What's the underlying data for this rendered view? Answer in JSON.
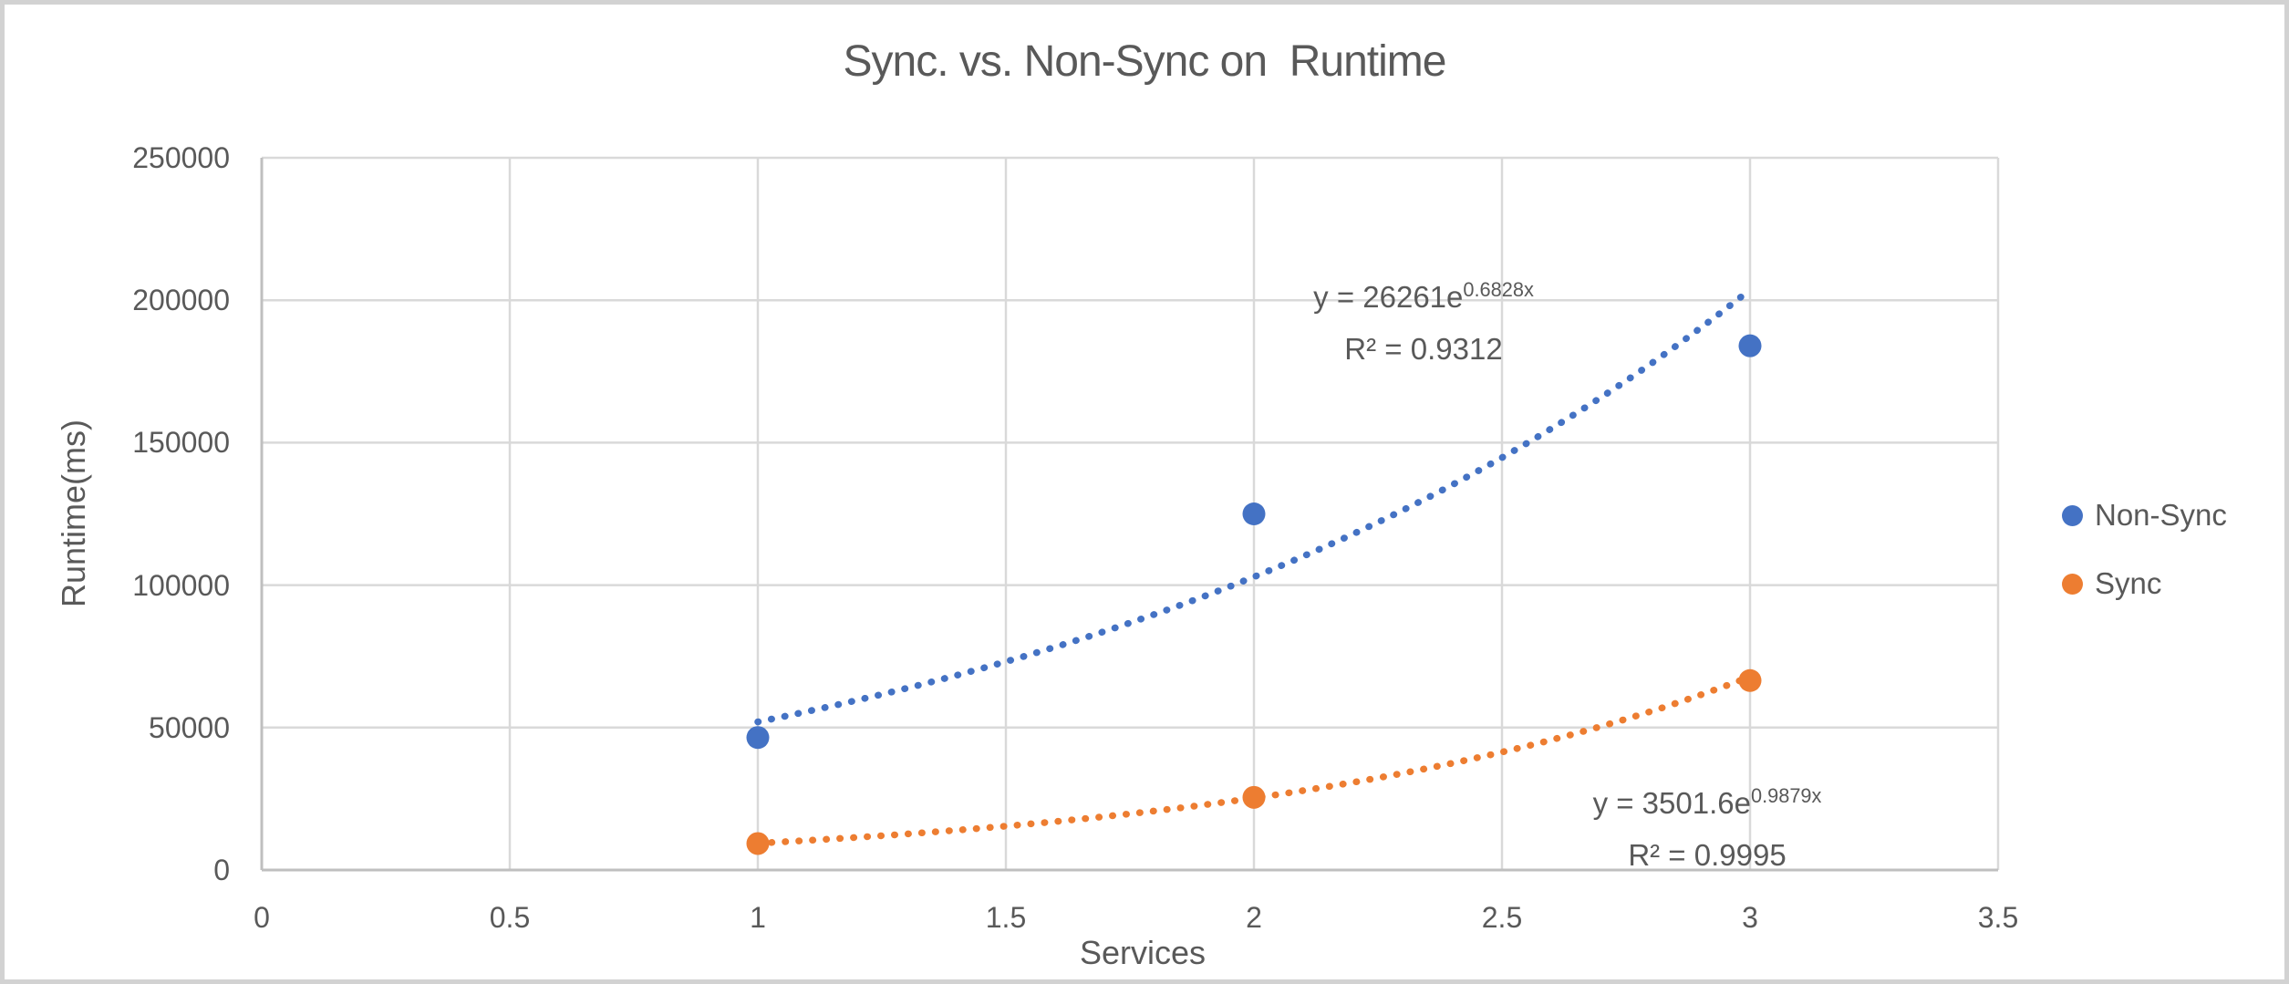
{
  "chart_data": {
    "type": "scatter",
    "title": "Sync. vs. Non-Sync on  Runtime",
    "xlabel": "Services",
    "ylabel": "Runtime(ms)",
    "xlim": [
      0,
      3.5
    ],
    "ylim": [
      0,
      250000
    ],
    "x_tick_values": [
      0,
      0.5,
      1,
      1.5,
      2,
      2.5,
      3,
      3.5
    ],
    "x_tick_labels": [
      "0",
      "0.5",
      "1",
      "1.5",
      "2",
      "2.5",
      "3",
      "3.5"
    ],
    "y_tick_values": [
      0,
      50000,
      100000,
      150000,
      200000,
      250000
    ],
    "y_tick_labels": [
      "0",
      "50000",
      "100000",
      "150000",
      "200000",
      "250000"
    ],
    "grid": true,
    "legend_position": "right",
    "series": [
      {
        "name": "Non-Sync",
        "color": "#4472C4",
        "points": [
          [
            1,
            46500
          ],
          [
            2,
            125000
          ],
          [
            3,
            184000
          ]
        ],
        "trendline": {
          "type": "exponential",
          "a": 26261,
          "b": 0.6828,
          "domain": [
            1,
            3
          ],
          "style": "dotted"
        },
        "label_prefix": "y = 26261e",
        "label_exponent": "0.6828x",
        "label_r2": "R² = 0.9312"
      },
      {
        "name": "Sync",
        "color": "#ED7D31",
        "points": [
          [
            1,
            9300
          ],
          [
            2,
            25500
          ],
          [
            3,
            66500
          ]
        ],
        "trendline": {
          "type": "exponential",
          "a": 3501.6,
          "b": 0.9879,
          "domain": [
            1,
            3
          ],
          "style": "dotted"
        },
        "label_prefix": "y = 3501.6e",
        "label_exponent": "0.9879x",
        "label_r2": "R² = 0.9995"
      }
    ]
  },
  "colors": {
    "text": "#595959",
    "gridline": "#D9D9D9",
    "axis_line": "#BFBFBF",
    "background": "#FFFFFF",
    "frame_border": "#D2D2D2",
    "non_sync": "#4472C4",
    "sync": "#ED7D31"
  }
}
